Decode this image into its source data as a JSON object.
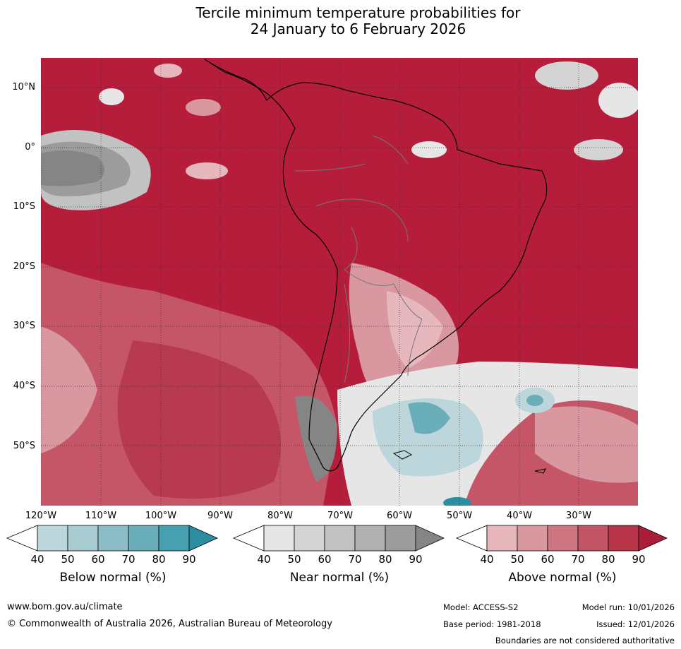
{
  "title": {
    "line1": "Tercile minimum temperature probabilities for",
    "line2": "24 January to 6 February 2026"
  },
  "map": {
    "region": "South America",
    "lat_labels": [
      "10°N",
      "0°",
      "10°S",
      "20°S",
      "30°S",
      "40°S",
      "50°S"
    ],
    "lon_labels": [
      "120°W",
      "110°W",
      "100°W",
      "90°W",
      "80°W",
      "70°W",
      "60°W",
      "50°W",
      "40°W",
      "30°W"
    ]
  },
  "colorbars": [
    {
      "label": "Below normal (%)",
      "ticks": [
        "40",
        "50",
        "60",
        "70",
        "80",
        "90"
      ],
      "colors": [
        "#ffffff",
        "#bcd6dc",
        "#a8cad1",
        "#8cbcc5",
        "#6aaeba",
        "#47a0b0",
        "#2a8ea0"
      ]
    },
    {
      "label": "Near normal (%)",
      "ticks": [
        "40",
        "50",
        "60",
        "70",
        "80",
        "90"
      ],
      "colors": [
        "#ffffff",
        "#e6e6e6",
        "#d4d4d4",
        "#c2c2c2",
        "#b0b0b0",
        "#9c9c9c",
        "#858585"
      ]
    },
    {
      "label": "Above normal (%)",
      "ticks": [
        "40",
        "50",
        "60",
        "70",
        "80",
        "90"
      ],
      "colors": [
        "#ffffff",
        "#e6b8be",
        "#d9979f",
        "#cd7682",
        "#c15565",
        "#b83549",
        "#a91d38"
      ]
    }
  ],
  "footer": {
    "website": "www.bom.gov.au/climate",
    "copyright": "© Commonwealth of Australia 2026, Australian Bureau of Meteorology",
    "model": "Model: ACCESS-S2",
    "base_period": "Base period: 1981-2018",
    "model_run": "Model run: 10/01/2026",
    "issued": "Issued: 12/01/2026",
    "disclaimer": "Boundaries are not considered authoritative"
  }
}
